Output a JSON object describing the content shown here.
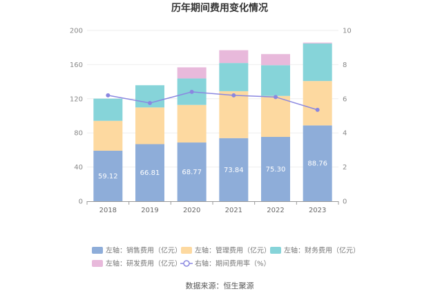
{
  "title": "历年期间费用变化情况",
  "source": "数据来源：恒生聚源",
  "colors": {
    "sales": "#8eadd9",
    "admin": "#fdd9a0",
    "finance": "#86d4d9",
    "rnd": "#e8b9db",
    "rate": "#8a87e0"
  },
  "chart_data": {
    "type": "bar",
    "stacked": true,
    "categories": [
      "2018",
      "2019",
      "2020",
      "2021",
      "2022",
      "2023"
    ],
    "series": [
      {
        "key": "sales",
        "name": "左轴：销售费用（亿元）",
        "values": [
          59.12,
          66.81,
          68.77,
          73.84,
          75.3,
          88.76
        ],
        "labels": [
          "59.12",
          "66.81",
          "68.77",
          "73.84",
          "75.30",
          "88.76"
        ]
      },
      {
        "key": "admin",
        "name": "左轴：管理费用（亿元）",
        "values": [
          35,
          43,
          44,
          55,
          48,
          52
        ]
      },
      {
        "key": "finance",
        "name": "左轴：财务费用（亿元）",
        "values": [
          26,
          26,
          31,
          33,
          36,
          44
        ]
      },
      {
        "key": "rnd",
        "name": "左轴：研发费用（亿元）",
        "values": [
          0,
          0,
          13,
          15,
          13,
          1
        ]
      }
    ],
    "line_series": {
      "key": "rate",
      "name": "右轴：期间费用率（%）",
      "values": [
        6.2,
        5.75,
        6.4,
        6.2,
        6.1,
        5.35
      ]
    },
    "y_left": {
      "min": 0,
      "max": 200,
      "ticks": [
        "0",
        "40",
        "80",
        "120",
        "160",
        "200"
      ]
    },
    "y_right": {
      "min": 0,
      "max": 10,
      "ticks": [
        "0",
        "2",
        "4",
        "6",
        "8",
        "10"
      ]
    },
    "grid": true,
    "legend_position": "bottom"
  }
}
